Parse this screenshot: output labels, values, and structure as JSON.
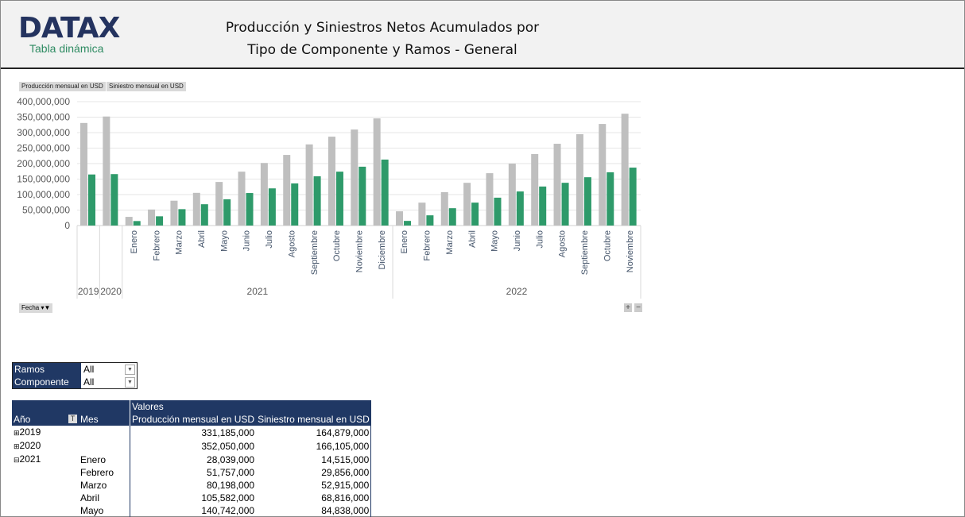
{
  "header": {
    "logo": "DATAX",
    "logo_sub": "Tabla dinámica",
    "title_line1": "Producción y Siniestros Netos Acumulados por",
    "title_line2": "Tipo de Componente y Ramos - General"
  },
  "chart_data": {
    "type": "bar",
    "series": [
      {
        "name": "Producción mensual en USD",
        "color": "#bfbfbf",
        "values": [
          331185000,
          352050000,
          28039000,
          51757000,
          80198000,
          105582000,
          140742000,
          174000000,
          202000000,
          228000000,
          262000000,
          287000000,
          310000000,
          346000000,
          46000000,
          74000000,
          108000000,
          138000000,
          169000000,
          200000000,
          231000000,
          264000000,
          295000000,
          328000000,
          361000000
        ]
      },
      {
        "name": "Siniestro mensual en USD",
        "color": "#2e9a6a",
        "values": [
          164879000,
          166105000,
          14515000,
          29856000,
          52915000,
          68816000,
          84838000,
          105000000,
          120000000,
          136000000,
          159000000,
          174000000,
          190000000,
          213000000,
          15000000,
          33000000,
          56000000,
          74000000,
          90000000,
          110000000,
          126000000,
          138000000,
          156000000,
          172000000,
          187000000
        ]
      }
    ],
    "categories": [
      "2019",
      "2020",
      "Enero",
      "Febrero",
      "Marzo",
      "Abril",
      "Mayo",
      "Junio",
      "Julio",
      "Agosto",
      "Septiembre",
      "Octubre",
      "Noviembre",
      "Diciembre",
      "Enero",
      "Febrero",
      "Marzo",
      "Abril",
      "Mayo",
      "Junio",
      "Julio",
      "Agosto",
      "Septiembre",
      "Octubre",
      "Noviembre"
    ],
    "groups": [
      {
        "label": "2019",
        "count": 1
      },
      {
        "label": "2020",
        "count": 1
      },
      {
        "label": "2021",
        "count": 12
      },
      {
        "label": "2022",
        "count": 11
      }
    ],
    "yticks": [
      "0",
      "50,000,000",
      "100,000,000",
      "150,000,000",
      "200,000,000",
      "250,000,000",
      "300,000,000",
      "350,000,000",
      "400,000,000"
    ],
    "ylim": [
      0,
      400000000
    ],
    "grid": true
  },
  "chart_buttons": {
    "field1": "Producción mensual en USD",
    "field2": "Siniestro mensual en USD",
    "axis_field": "Fecha ▾▼",
    "plus": "+",
    "minus": "−"
  },
  "filters": [
    {
      "label": "Ramos",
      "value": "All"
    },
    {
      "label": "Componente",
      "value": "All"
    }
  ],
  "pivot": {
    "valores": "Valores",
    "col_year": "Año",
    "col_month": "Mes",
    "col_prod": "Producción mensual en USD",
    "col_sin": "Siniestro mensual en USD",
    "rows": [
      {
        "toggle": "⊞",
        "year": "2019",
        "month": "",
        "prod": "331,185,000",
        "sin": "164,879,000"
      },
      {
        "toggle": "⊞",
        "year": "2020",
        "month": "",
        "prod": "352,050,000",
        "sin": "166,105,000"
      },
      {
        "toggle": "⊟",
        "year": "2021",
        "month": "Enero",
        "prod": "28,039,000",
        "sin": "14,515,000"
      },
      {
        "toggle": "",
        "year": "",
        "month": "Febrero",
        "prod": "51,757,000",
        "sin": "29,856,000"
      },
      {
        "toggle": "",
        "year": "",
        "month": "Marzo",
        "prod": "80,198,000",
        "sin": "52,915,000"
      },
      {
        "toggle": "",
        "year": "",
        "month": "Abril",
        "prod": "105,582,000",
        "sin": "68,816,000"
      },
      {
        "toggle": "",
        "year": "",
        "month": "Mayo",
        "prod": "140,742,000",
        "sin": "84,838,000"
      }
    ]
  }
}
